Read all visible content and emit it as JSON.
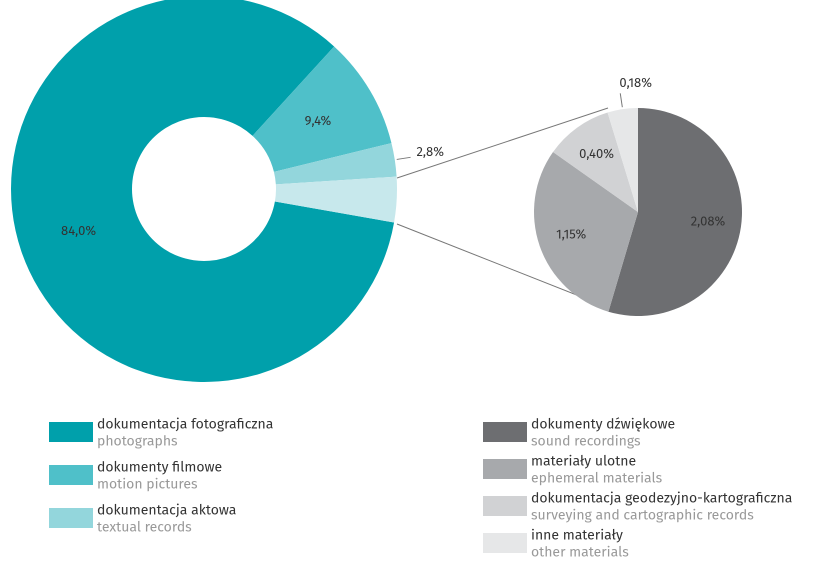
{
  "chart_data": [
    {
      "type": "donut",
      "categories": [
        "dokumentacja fotograficzna",
        "dokumenty filmowe",
        "dokumentacja aktowa",
        null
      ],
      "category_subtitles": [
        "photographs",
        "motion pictures",
        "textual records",
        null
      ],
      "values": [
        84.0,
        9.4,
        2.8,
        3.8
      ],
      "value_labels": [
        "84,0%",
        "9,4%",
        "2,8%",
        null
      ],
      "colors": [
        "#00a0ab",
        "#4fc0c9",
        "#93d6dc",
        "#c7e8ec"
      ]
    },
    {
      "type": "pie",
      "categories": [
        "dokumenty dźwiękowe",
        "materiały ulotne",
        "dokumentacja geodezyjno-kartograficzna",
        "inne materiały"
      ],
      "category_subtitles": [
        "sound recordings",
        "ephemeral materials",
        "surveying and cartographic records",
        "other materials"
      ],
      "values": [
        2.08,
        1.15,
        0.4,
        0.18
      ],
      "value_labels": [
        "2,08%",
        "1,15%",
        "0,40%",
        "0,18%"
      ],
      "colors": [
        "#6d6e71",
        "#a7a9ac",
        "#d1d2d4",
        "#e6e7e8"
      ]
    }
  ]
}
